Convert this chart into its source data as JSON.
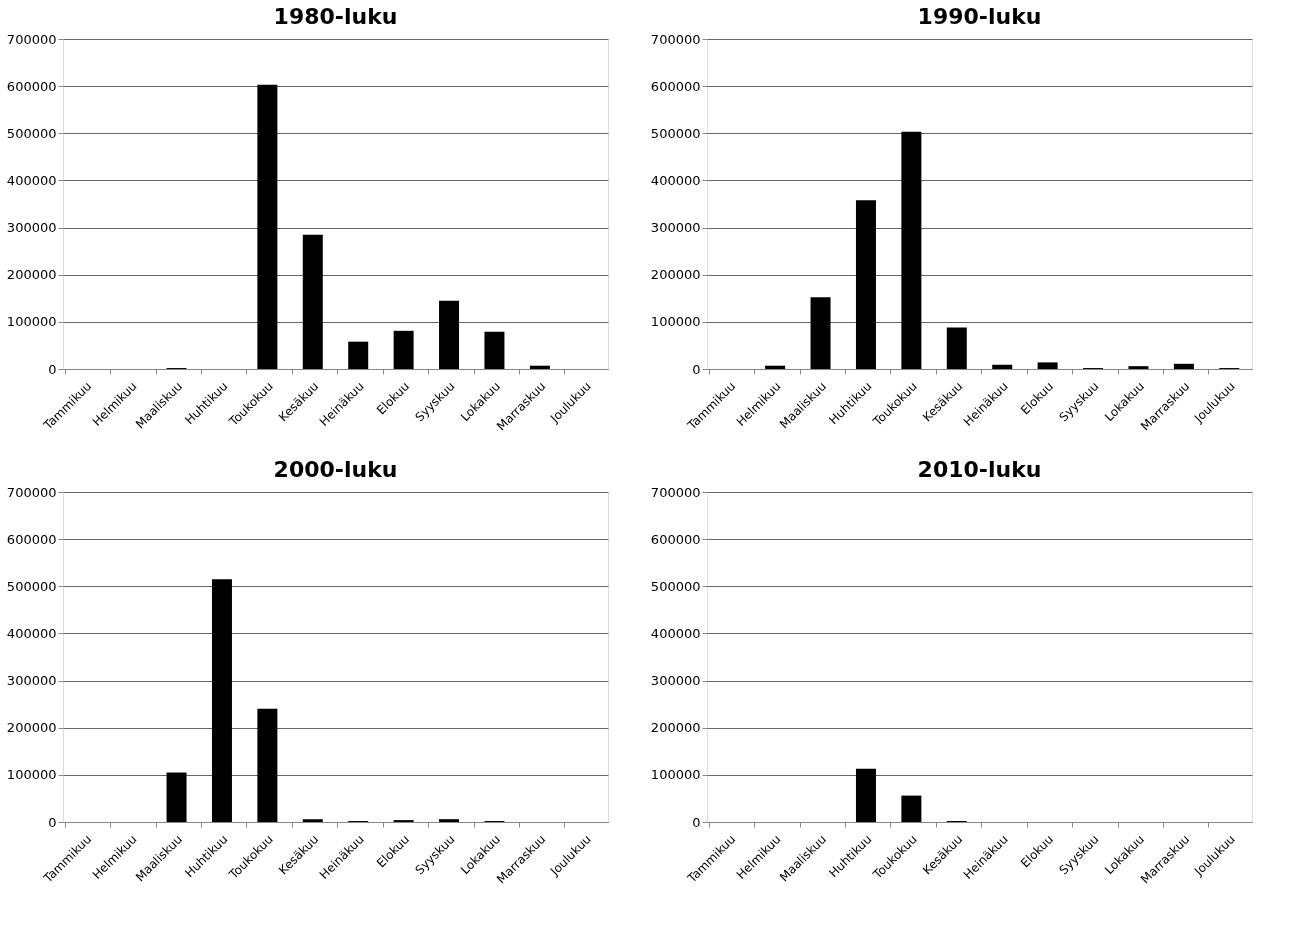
{
  "chart_data": [
    {
      "type": "bar",
      "title": "1980-luku",
      "categories": [
        "Tammikuu",
        "Helmikuu",
        "Maaliskuu",
        "Huhtikuu",
        "Toukokuu",
        "Kesäkuu",
        "Heinäkuu",
        "Elokuu",
        "Syyskuu",
        "Lokakuu",
        "Marraskuu",
        "Joulukuu"
      ],
      "values": [
        0,
        0,
        2000,
        0,
        603000,
        285000,
        58000,
        81000,
        145000,
        79000,
        7000,
        0
      ],
      "color": "#000000",
      "ylim": [
        0,
        700000
      ],
      "yticks": [
        0,
        100000,
        200000,
        300000,
        400000,
        500000,
        600000,
        700000
      ],
      "grid": "y"
    },
    {
      "type": "bar",
      "title": "1990-luku",
      "categories": [
        "Tammikuu",
        "Helmikuu",
        "Maaliskuu",
        "Huhtikuu",
        "Toukokuu",
        "Kesäkuu",
        "Heinäkuu",
        "Elokuu",
        "Syyskuu",
        "Lokakuu",
        "Marraskuu",
        "Joulukuu"
      ],
      "values": [
        0,
        7000,
        152000,
        358000,
        503000,
        88000,
        9000,
        14000,
        2000,
        6000,
        11000,
        2000
      ],
      "color": "#000000",
      "ylim": [
        0,
        700000
      ],
      "yticks": [
        0,
        100000,
        200000,
        300000,
        400000,
        500000,
        600000,
        700000
      ],
      "grid": "y"
    },
    {
      "type": "bar",
      "title": "2000-luku",
      "categories": [
        "Tammikuu",
        "Helmikuu",
        "Maaliskuu",
        "Huhtikuu",
        "Toukokuu",
        "Kesäkuu",
        "Heinäkuu",
        "Elokuu",
        "Syyskuu",
        "Lokakuu",
        "Marraskuu",
        "Joulukuu"
      ],
      "values": [
        0,
        0,
        105000,
        515000,
        240000,
        6000,
        2000,
        4000,
        6000,
        2000,
        0,
        0
      ],
      "color": "#000000",
      "ylim": [
        0,
        700000
      ],
      "yticks": [
        0,
        100000,
        200000,
        300000,
        400000,
        500000,
        600000,
        700000
      ],
      "grid": "y"
    },
    {
      "type": "bar",
      "title": "2010-luku",
      "categories": [
        "Tammikuu",
        "Helmikuu",
        "Maaliskuu",
        "Huhtikuu",
        "Toukokuu",
        "Kesäkuu",
        "Heinäkuu",
        "Elokuu",
        "Syyskuu",
        "Lokakuu",
        "Marraskuu",
        "Joulukuu"
      ],
      "values": [
        0,
        0,
        0,
        113000,
        56000,
        2000,
        0,
        0,
        0,
        0,
        0,
        0
      ],
      "color": "#000000",
      "ylim": [
        0,
        700000
      ],
      "yticks": [
        0,
        100000,
        200000,
        300000,
        400000,
        500000,
        600000,
        700000
      ],
      "grid": "y"
    }
  ]
}
